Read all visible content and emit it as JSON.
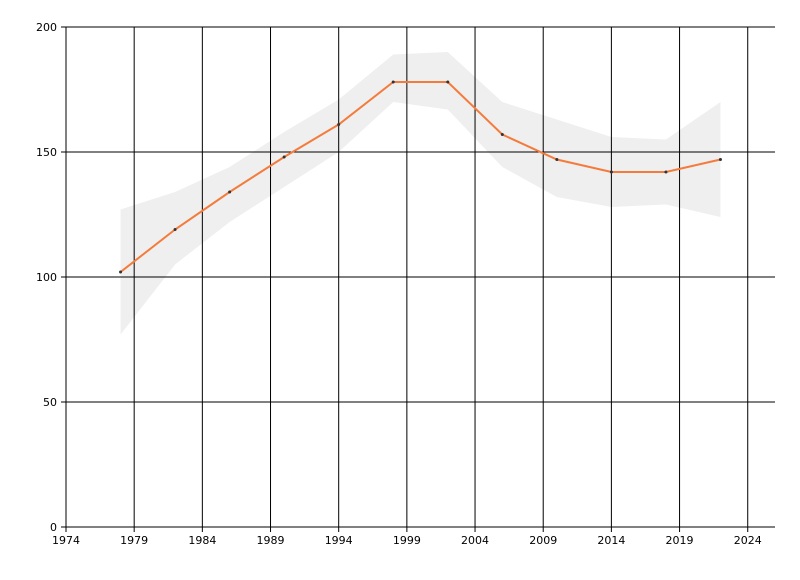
{
  "chart_data": {
    "type": "line",
    "x": [
      1978,
      1982,
      1986,
      1990,
      1994,
      1998,
      2002,
      2006,
      2010,
      2014,
      2018,
      2022
    ],
    "series": [
      {
        "color": "#f47b3c",
        "values": [
          102,
          119,
          134,
          148,
          161,
          178,
          178,
          157,
          147,
          142,
          142,
          147
        ]
      }
    ],
    "band": {
      "color": "#efefef",
      "upper": [
        127,
        134,
        144,
        158,
        171,
        189,
        190,
        170,
        163,
        156,
        155,
        170
      ],
      "lower": [
        77,
        105,
        122,
        136,
        150,
        170,
        167,
        144,
        132,
        128,
        129,
        124
      ]
    },
    "xlim": [
      1974,
      2026
    ],
    "xticks": [
      1974,
      1979,
      1984,
      1989,
      1994,
      1999,
      2004,
      2009,
      2014,
      2019,
      2024
    ],
    "ylim": [
      0,
      200
    ],
    "yticks": [
      0,
      50,
      100,
      150,
      200
    ],
    "grid": true
  }
}
